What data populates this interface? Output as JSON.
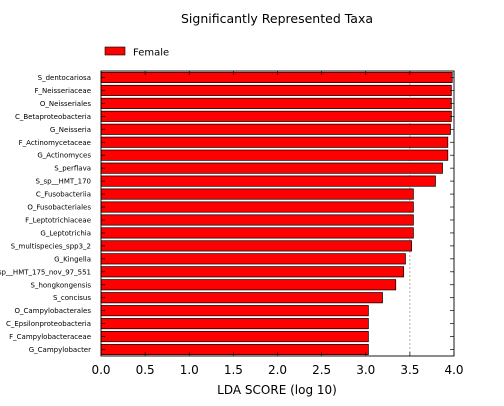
{
  "chart_data": {
    "type": "bar",
    "orientation": "horizontal",
    "title": "Significantly Represented Taxa",
    "xlabel": "LDA SCORE (log 10)",
    "ylabel": "",
    "xlim": [
      0.0,
      4.0
    ],
    "xticks": [
      "0.0",
      "0.5",
      "1.0",
      "1.5",
      "2.0",
      "2.5",
      "3.0",
      "3.5",
      "4.0"
    ],
    "legend": {
      "position": "top-left",
      "entries": [
        "Female"
      ]
    },
    "categories": [
      "S_dentocariosa",
      "F_Neisseriaceae",
      "O_Neisseriales",
      "C_Betaproteobacteria",
      "G_Neisseria",
      "F_Actinomycetaceae",
      "G_Actinomyces",
      "S_perflava",
      "S_sp__HMT_170",
      "C_Fusobacteriia",
      "O_Fusobacteriales",
      "F_Leptotrichiaceae",
      "G_Leptotrichia",
      "S_multispecies_spp3_2",
      "G_Kingella",
      "S_sp__HMT_175_nov_97_551",
      "S_hongkongensis",
      "S_concisus",
      "O_Campylobacterales",
      "C_Epsilonproteobacteria",
      "F_Campylobacteraceae",
      "G_Campylobacter"
    ],
    "series": [
      {
        "name": "Female",
        "color": "#ff0000",
        "values": [
          3.98,
          3.97,
          3.97,
          3.97,
          3.96,
          3.93,
          3.93,
          3.87,
          3.79,
          3.54,
          3.54,
          3.54,
          3.54,
          3.52,
          3.45,
          3.43,
          3.34,
          3.19,
          3.03,
          3.03,
          3.03,
          3.03
        ]
      }
    ],
    "reference_line": {
      "x": 3.5,
      "style": "dashed"
    },
    "grid": false
  }
}
